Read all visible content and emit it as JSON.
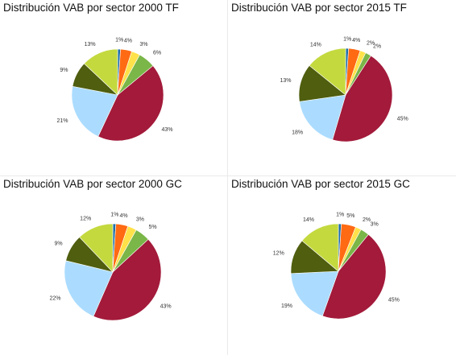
{
  "sector_colors": [
    "#1f6ea8",
    "#ff6a13",
    "#ffe14a",
    "#7ab648",
    "#a31a3a",
    "#abdcff",
    "#4f5e0f",
    "#c4d93e"
  ],
  "chart_data": [
    {
      "type": "pie",
      "title": "Distribución VAB por sector 2000 TF",
      "values": [
        1,
        4,
        3,
        6,
        43,
        21,
        9,
        13
      ],
      "labels": [
        "1%",
        "4%",
        "3%",
        "6%",
        "43%",
        "21%",
        "9%",
        "13%"
      ]
    },
    {
      "type": "pie",
      "title": "Distribución VAB por sector 2015 TF",
      "values": [
        1,
        4,
        2,
        2,
        45,
        18,
        13,
        14
      ],
      "labels": [
        "1%",
        "4%",
        "2%",
        "2%",
        "45%",
        "18%",
        "13%",
        "14%"
      ]
    },
    {
      "type": "pie",
      "title": "Distribución VAB por sector 2000 GC",
      "values": [
        1,
        4,
        3,
        5,
        43,
        22,
        9,
        12
      ],
      "labels": [
        "1%",
        "4%",
        "3%",
        "5%",
        "43%",
        "22%",
        "9%",
        "12%"
      ]
    },
    {
      "type": "pie",
      "title": "Distribución VAB por sector 2015 GC",
      "values": [
        1,
        5,
        2,
        3,
        45,
        19,
        12,
        14
      ],
      "labels": [
        "1%",
        "5%",
        "2%",
        "3%",
        "45%",
        "19%",
        "12%",
        "14%"
      ]
    }
  ]
}
